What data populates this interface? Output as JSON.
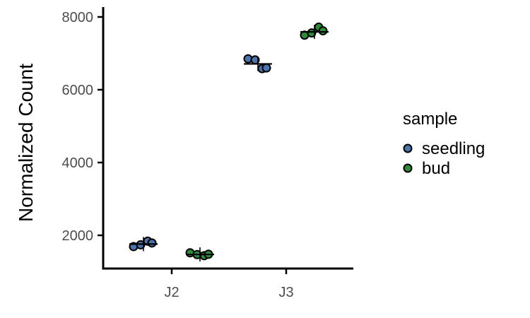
{
  "chart_data": {
    "type": "scatter",
    "ylabel": "Normalized Count",
    "xlabel": "",
    "categories": [
      "J2",
      "J3"
    ],
    "ylim": [
      1000,
      8000
    ],
    "yticks": [
      2000,
      4000,
      6000,
      8000
    ],
    "grid": false,
    "legend": {
      "title": "sample",
      "position": "right",
      "entries": [
        {
          "name": "seedling",
          "color": "#4a74ac"
        },
        {
          "name": "bud",
          "color": "#2e8b36"
        }
      ]
    },
    "series": [
      {
        "name": "seedling",
        "color": "#4a74ac",
        "points": [
          {
            "category": "J2",
            "values": [
              1690,
              1840,
              1740,
              1790
            ]
          },
          {
            "category": "J3",
            "values": [
              6850,
              6580,
              6820,
              6600
            ]
          }
        ],
        "means": [
          {
            "category": "J2",
            "value": 1760
          },
          {
            "category": "J3",
            "value": 6710
          }
        ]
      },
      {
        "name": "bud",
        "color": "#2e8b36",
        "points": [
          {
            "category": "J2",
            "values": [
              1520,
              1440,
              1470,
              1480
            ]
          },
          {
            "category": "J3",
            "values": [
              7500,
              7720,
              7560,
              7620
            ]
          }
        ],
        "means": [
          {
            "category": "J2",
            "value": 1475
          },
          {
            "category": "J3",
            "value": 7590
          }
        ]
      }
    ]
  }
}
